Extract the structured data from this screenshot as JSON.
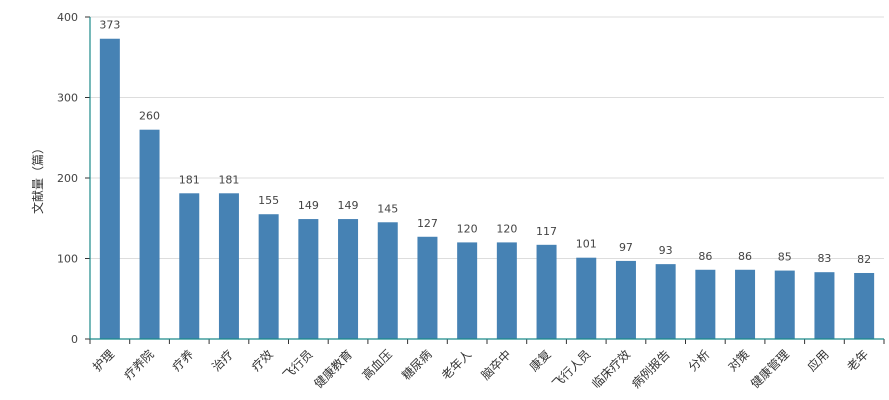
{
  "chart_data": {
    "type": "bar",
    "ylabel": "文献量（篇）",
    "ylim": [
      0,
      400
    ],
    "yticks": [
      0,
      100,
      200,
      300,
      400
    ],
    "grid": true,
    "bar_color": "#4682B4",
    "categories": [
      "护理",
      "疗养院",
      "疗养",
      "治疗",
      "疗效",
      "飞行员",
      "健康教育",
      "高血压",
      "糖尿病",
      "老年人",
      "脑卒中",
      "康复",
      "飞行人员",
      "临床疗效",
      "病例报告",
      "分析",
      "对策",
      "健康管理",
      "应用",
      "老年"
    ],
    "values": [
      373,
      260,
      181,
      181,
      155,
      149,
      149,
      145,
      127,
      120,
      120,
      117,
      101,
      97,
      93,
      86,
      86,
      85,
      83,
      82
    ]
  }
}
